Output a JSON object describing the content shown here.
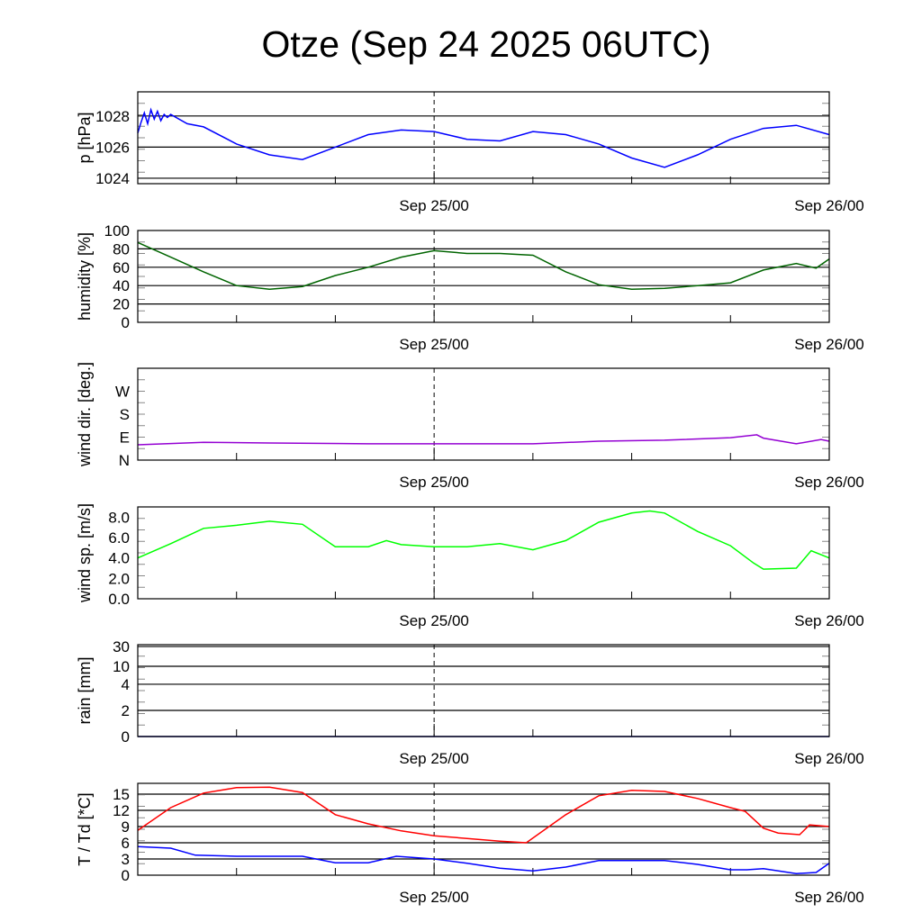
{
  "title": "Otze (Sep 24 2025 06UTC)",
  "chart_data": [
    {
      "type": "line",
      "id": "pressure",
      "ylabel": "p [hPa]",
      "ylim": [
        1023.65,
        1029.55
      ],
      "yticks": [
        {
          "v": 1024,
          "label": "1024"
        },
        {
          "v": 1026,
          "label": "1026"
        },
        {
          "v": 1028,
          "label": "1028"
        }
      ],
      "grid": [
        1024,
        1026,
        1028
      ],
      "xlim_hours": [
        0,
        42
      ],
      "xlabels": [
        {
          "h": 18,
          "label": "Sep 25/00"
        },
        {
          "h": 42,
          "label": "Sep 26/00"
        }
      ],
      "series": [
        {
          "name": "pressure",
          "color": "#0000ff",
          "x": [
            0,
            0.2,
            0.4,
            0.6,
            0.8,
            1.0,
            1.2,
            1.4,
            1.6,
            1.8,
            2,
            3,
            4,
            6,
            8,
            10,
            12,
            14,
            16,
            18,
            20,
            22,
            24,
            26,
            28,
            30,
            32,
            34,
            36,
            38,
            40,
            42
          ],
          "y": [
            1026.9,
            1027.6,
            1028.2,
            1027.5,
            1028.4,
            1027.8,
            1028.3,
            1027.7,
            1028.1,
            1027.9,
            1028.1,
            1027.5,
            1027.3,
            1026.2,
            1025.5,
            1025.2,
            1026.0,
            1026.8,
            1027.1,
            1027.0,
            1026.5,
            1026.4,
            1027.0,
            1026.8,
            1026.2,
            1025.3,
            1024.7,
            1025.5,
            1026.5,
            1027.2,
            1027.4,
            1026.8
          ]
        }
      ]
    },
    {
      "type": "line",
      "id": "humidity",
      "ylabel": "humidity [%]",
      "ylim": [
        0,
        100
      ],
      "yticks": [
        {
          "v": 0,
          "label": "0"
        },
        {
          "v": 20,
          "label": "20"
        },
        {
          "v": 40,
          "label": "40"
        },
        {
          "v": 60,
          "label": "60"
        },
        {
          "v": 80,
          "label": "80"
        },
        {
          "v": 100,
          "label": "100"
        }
      ],
      "grid": [
        20,
        40,
        60,
        80
      ],
      "xlim_hours": [
        0,
        42
      ],
      "xlabels": [
        {
          "h": 18,
          "label": "Sep 25/00"
        },
        {
          "h": 42,
          "label": "Sep 26/00"
        }
      ],
      "series": [
        {
          "name": "humidity",
          "color": "#006400",
          "x": [
            0,
            2,
            4,
            6,
            8,
            10,
            12,
            14,
            16,
            18,
            20,
            22,
            24,
            26,
            28,
            30,
            32,
            34,
            36,
            38,
            40,
            41.2,
            42
          ],
          "y": [
            87,
            71,
            55,
            40,
            36,
            39,
            51,
            60,
            71,
            78,
            75,
            75,
            73,
            55,
            41,
            36,
            37,
            40,
            43,
            57,
            64,
            59,
            69
          ]
        }
      ]
    },
    {
      "type": "line",
      "id": "winddir",
      "ylabel": "wind dir. [deg.]",
      "ylim": [
        0,
        360
      ],
      "yticks": [
        {
          "v": 0,
          "label": "N"
        },
        {
          "v": 90,
          "label": "E"
        },
        {
          "v": 180,
          "label": "S"
        },
        {
          "v": 270,
          "label": "W"
        }
      ],
      "grid": [],
      "xlim_hours": [
        0,
        42
      ],
      "xlabels": [
        {
          "h": 18,
          "label": "Sep 25/00"
        },
        {
          "h": 42,
          "label": "Sep 26/00"
        }
      ],
      "series": [
        {
          "name": "wind direction",
          "color": "#9400d3",
          "x": [
            0,
            4,
            8,
            14,
            18,
            24,
            28,
            32,
            36,
            37.6,
            38,
            40,
            41.5,
            42
          ],
          "y": [
            60,
            70,
            67,
            64,
            64,
            64,
            74,
            78,
            88,
            99,
            86,
            64,
            81,
            74
          ]
        }
      ]
    },
    {
      "type": "line",
      "id": "windspeed",
      "ylabel": "wind sp. [m/s]",
      "ylim": [
        0,
        9
      ],
      "yticks": [
        {
          "v": 0,
          "label": "0.0"
        },
        {
          "v": 2,
          "label": "2.0"
        },
        {
          "v": 4,
          "label": "4.0"
        },
        {
          "v": 6,
          "label": "6.0"
        },
        {
          "v": 8,
          "label": "8.0"
        }
      ],
      "grid": [],
      "xlim_hours": [
        0,
        42
      ],
      "xlabels": [
        {
          "h": 18,
          "label": "Sep 25/00"
        },
        {
          "h": 42,
          "label": "Sep 26/00"
        }
      ],
      "series": [
        {
          "name": "wind speed",
          "color": "#00ff00",
          "x": [
            0,
            2,
            4,
            6,
            8,
            10,
            12,
            14,
            15.1,
            16,
            18,
            20,
            22,
            24,
            26,
            28,
            30,
            31.1,
            32,
            34,
            36,
            37.4,
            38,
            40,
            40.9,
            42
          ],
          "y": [
            4.0,
            5.4,
            6.9,
            7.2,
            7.6,
            7.3,
            5.1,
            5.1,
            5.7,
            5.3,
            5.1,
            5.1,
            5.4,
            4.8,
            5.7,
            7.5,
            8.4,
            8.6,
            8.4,
            6.6,
            5.2,
            3.5,
            2.9,
            3.0,
            4.7,
            4.0
          ]
        }
      ]
    },
    {
      "type": "line",
      "id": "rain",
      "ylabel": "rain [mm]",
      "ylim": [
        0,
        30
      ],
      "yticks": [
        {
          "v": 0,
          "label": "0"
        },
        {
          "v": 2,
          "label": "2"
        },
        {
          "v": 4,
          "label": "4"
        },
        {
          "v": 10,
          "label": "10"
        },
        {
          "v": 30,
          "label": "30"
        }
      ],
      "grid": [
        2,
        4,
        10,
        30
      ],
      "xlim_hours": [
        0,
        42
      ],
      "xlabels": [
        {
          "h": 18,
          "label": "Sep 25/00"
        },
        {
          "h": 42,
          "label": "Sep 26/00"
        }
      ],
      "series": [
        {
          "name": "rain",
          "color": "#00008b",
          "x": [
            0,
            42
          ],
          "y": [
            0,
            0
          ]
        }
      ]
    },
    {
      "type": "line",
      "id": "temperature",
      "ylabel": "T / Td [*C]",
      "ylim": [
        0,
        17
      ],
      "yticks": [
        {
          "v": 0,
          "label": "0"
        },
        {
          "v": 3,
          "label": "3"
        },
        {
          "v": 6,
          "label": "6"
        },
        {
          "v": 9,
          "label": "9"
        },
        {
          "v": 12,
          "label": "12"
        },
        {
          "v": 15,
          "label": "15"
        }
      ],
      "grid": [
        3,
        6,
        9,
        12,
        15
      ],
      "xlim_hours": [
        0,
        42
      ],
      "xlabels": [
        {
          "h": 18,
          "label": "Sep 25/00"
        },
        {
          "h": 42,
          "label": "Sep 26/00"
        }
      ],
      "series": [
        {
          "name": "T",
          "color": "#ff0000",
          "x": [
            0,
            2,
            4,
            6,
            8,
            10,
            12,
            14,
            16,
            18,
            20,
            22,
            23.6,
            26,
            28,
            30,
            32,
            34,
            36,
            36.9,
            38,
            38.9,
            40.2,
            40.8,
            42
          ],
          "y": [
            8.3,
            12.5,
            15.2,
            16.2,
            16.3,
            15.3,
            11.2,
            9.5,
            8.2,
            7.3,
            6.8,
            6.3,
            6.0,
            11.2,
            14.7,
            15.7,
            15.5,
            14.2,
            12.5,
            11.8,
            8.7,
            7.8,
            7.5,
            9.3,
            9.0
          ]
        },
        {
          "name": "Td",
          "color": "#0000ff",
          "x": [
            0,
            2,
            3.5,
            6,
            10,
            12,
            14,
            15.7,
            18,
            20,
            22,
            24,
            26,
            28,
            30,
            32,
            34,
            36,
            37,
            38,
            40,
            41.2,
            42
          ],
          "y": [
            5.3,
            5.0,
            3.7,
            3.5,
            3.5,
            2.3,
            2.3,
            3.5,
            3.0,
            2.2,
            1.3,
            0.8,
            1.5,
            2.7,
            2.7,
            2.7,
            2.0,
            1.0,
            1.0,
            1.2,
            0.3,
            0.5,
            2.2
          ]
        }
      ]
    }
  ]
}
